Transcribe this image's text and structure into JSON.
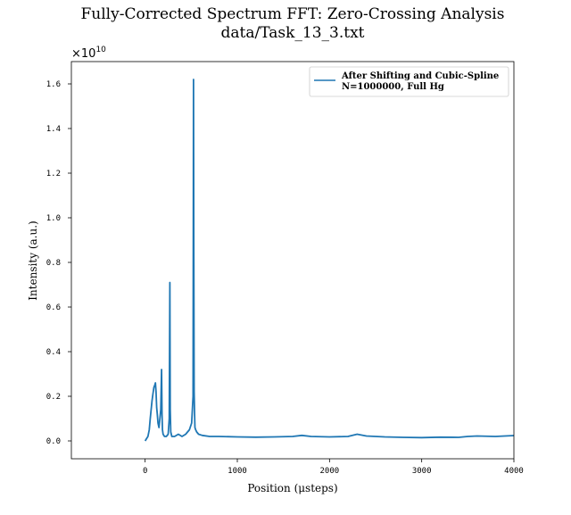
{
  "chart_data": {
    "type": "line",
    "title": "Fully-Corrected Spectrum FFT: Zero-Crossing Analysis",
    "subtitle": "data/Task_13_3.txt",
    "xlabel": "Position (μsteps)",
    "ylabel": "Intensity (a.u.)",
    "y_multiplier": "×10",
    "y_multiplier_exponent": "10",
    "xlim": [
      -800,
      4000
    ],
    "ylim": [
      -0.08,
      1.7
    ],
    "x_ticks": [
      0,
      1000,
      2000,
      3000,
      4000
    ],
    "x_tick_labels": [
      "0",
      "1000",
      "2000",
      "3000",
      "4000"
    ],
    "y_ticks": [
      0.0,
      0.2,
      0.4,
      0.6,
      0.8,
      1.0,
      1.2,
      1.4,
      1.6
    ],
    "y_tick_labels": [
      "0.0",
      "0.2",
      "0.4",
      "0.6",
      "0.8",
      "1.0",
      "1.2",
      "1.4",
      "1.6"
    ],
    "grid": false,
    "legend": {
      "placement": "upper right",
      "entries": [
        "After Shifting and Cubic-Spline",
        "N=1000000, Full Hg"
      ]
    },
    "series": [
      {
        "color": "#1f77b4",
        "x": [
          0,
          15,
          30,
          45,
          55,
          65,
          75,
          85,
          95,
          105,
          112,
          118,
          125,
          132,
          140,
          150,
          160,
          170,
          178,
          183,
          188,
          195,
          210,
          230,
          250,
          262,
          268,
          272,
          278,
          290,
          320,
          360,
          400,
          440,
          480,
          505,
          520,
          525,
          528,
          532,
          536,
          540,
          548,
          560,
          580,
          620,
          700,
          800,
          1000,
          1200,
          1400,
          1600,
          1700,
          1800,
          2000,
          2200,
          2300,
          2400,
          2600,
          2800,
          3000,
          3200,
          3400,
          3500,
          3600,
          3800,
          4000
        ],
        "y": [
          0.0,
          0.01,
          0.02,
          0.05,
          0.1,
          0.14,
          0.18,
          0.21,
          0.24,
          0.25,
          0.26,
          0.22,
          0.15,
          0.12,
          0.08,
          0.06,
          0.1,
          0.14,
          0.32,
          0.12,
          0.05,
          0.03,
          0.02,
          0.02,
          0.03,
          0.1,
          0.71,
          0.14,
          0.04,
          0.02,
          0.02,
          0.03,
          0.02,
          0.03,
          0.05,
          0.08,
          0.2,
          1.62,
          0.9,
          0.22,
          0.12,
          0.06,
          0.05,
          0.04,
          0.03,
          0.025,
          0.02,
          0.02,
          0.018,
          0.017,
          0.018,
          0.02,
          0.025,
          0.02,
          0.018,
          0.02,
          0.03,
          0.022,
          0.018,
          0.016,
          0.015,
          0.017,
          0.016,
          0.02,
          0.022,
          0.02,
          0.024
        ]
      }
    ]
  }
}
